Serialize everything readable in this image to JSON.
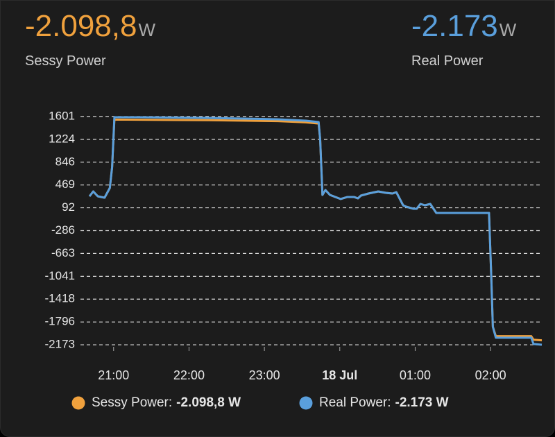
{
  "chart_data": {
    "type": "line",
    "header": [
      {
        "value_label": "-2.098,8",
        "unit": "W",
        "name": "Sessy Power",
        "color": "#f0a13d"
      },
      {
        "value_label": "-2.173",
        "unit": "W",
        "name": "Real Power",
        "color": "#5a9fdc"
      }
    ],
    "x": [
      20.68,
      20.73,
      20.79,
      20.88,
      20.95,
      20.98,
      21.01,
      21.34,
      22.26,
      23.18,
      23.55,
      23.72,
      23.74,
      23.77,
      23.81,
      23.87,
      24.01,
      24.1,
      24.19,
      24.24,
      24.28,
      24.38,
      24.51,
      24.61,
      24.7,
      24.75,
      24.84,
      24.88,
      24.98,
      25.02,
      25.07,
      25.13,
      25.2,
      25.28,
      25.94,
      25.98,
      26.01,
      26.03,
      26.07,
      26.22,
      26.54,
      26.57,
      26.68
    ],
    "xlim": [
      20.68,
      26.68
    ],
    "xticks": [
      {
        "value": 21,
        "label": "21:00"
      },
      {
        "value": 22,
        "label": "22:00"
      },
      {
        "value": 23,
        "label": "23:00"
      },
      {
        "value": 24,
        "label": "18 Jul"
      },
      {
        "value": 25,
        "label": "01:00"
      },
      {
        "value": 26,
        "label": "02:00"
      }
    ],
    "ylim": [
      -2200,
      1640
    ],
    "yticks": [
      1601,
      1224,
      846,
      469,
      92,
      -286,
      -663,
      -1041,
      -1418,
      -1796,
      -2173
    ],
    "grid": true,
    "series": [
      {
        "name": "Sessy Power",
        "color": "#f0a13d",
        "legend_label": "Sessy Power:",
        "legend_value": "-2.098,8 W",
        "values": [
          282,
          362,
          282,
          259,
          420,
          764,
          1550,
          1548,
          1540,
          1525,
          1505,
          1485,
          1223,
          305,
          385,
          305,
          237,
          271,
          271,
          248,
          294,
          328,
          362,
          339,
          328,
          350,
          133,
          110,
          76,
          76,
          156,
          133,
          156,
          7,
          7,
          7,
          -1071,
          -1874,
          -2030,
          -2030,
          -2030,
          -2090,
          -2098.8
        ]
      },
      {
        "name": "Real Power",
        "color": "#5a9fdc",
        "legend_label": "Real Power:",
        "legend_value": "-2.173 W",
        "values": [
          282,
          362,
          282,
          259,
          420,
          764,
          1590,
          1590,
          1578,
          1555,
          1532,
          1509,
          1223,
          305,
          385,
          305,
          237,
          271,
          271,
          248,
          294,
          328,
          362,
          339,
          328,
          350,
          133,
          110,
          76,
          76,
          156,
          133,
          156,
          7,
          7,
          7,
          -1071,
          -1874,
          -2057,
          -2057,
          -2057,
          -2160,
          -2173
        ]
      }
    ]
  }
}
